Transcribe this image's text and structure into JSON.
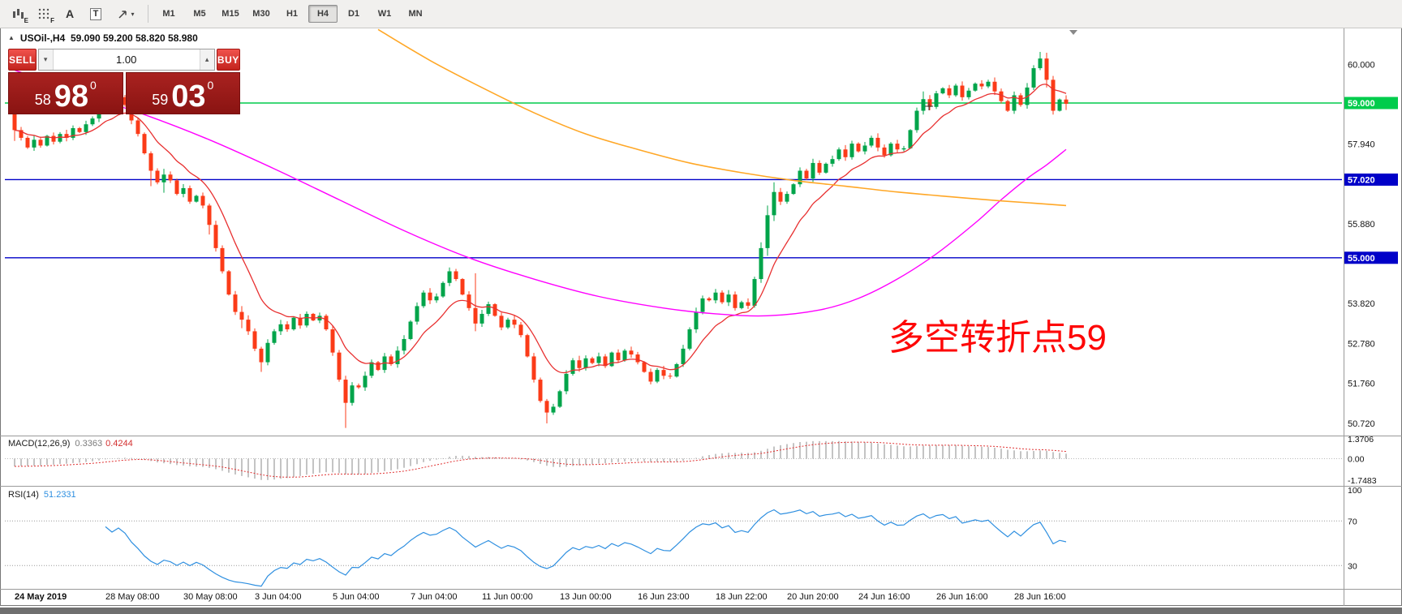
{
  "toolbar": {
    "tools": [
      {
        "id": "indicator",
        "label": "E"
      },
      {
        "id": "grid",
        "label": "F"
      },
      {
        "id": "text",
        "label": "A"
      },
      {
        "id": "template",
        "label": "T"
      },
      {
        "id": "cursor",
        "label": ""
      }
    ],
    "timeframes": [
      "M1",
      "M5",
      "M15",
      "M30",
      "H1",
      "H4",
      "D1",
      "W1",
      "MN"
    ],
    "selected_timeframe": "H4"
  },
  "chart": {
    "symbol": "USOil-,H4",
    "ohlc": "59.090 59.200 58.820 58.980",
    "annotation": "多空转折点59",
    "trade_panel": {
      "sell_label": "SELL",
      "buy_label": "BUY",
      "volume": "1.00",
      "sell_price": {
        "main": "58",
        "pips": "98",
        "pt": "0"
      },
      "buy_price": {
        "main": "59",
        "pips": "03",
        "pt": "0"
      }
    }
  },
  "macd_panel": {
    "title": "MACD(12,26,9)",
    "value_main": "0.3363",
    "value_signal": "0.4244",
    "axis": [
      "1.3706",
      "0.00",
      "-1.7483"
    ]
  },
  "rsi_panel": {
    "title": "RSI(14)",
    "value": "51.2331",
    "axis": [
      "100",
      "70",
      "30"
    ]
  },
  "chart_data": {
    "type": "candlestick",
    "title": "USOil- H4 with MACD(12,26,9) and RSI(14)",
    "price_axis_labels": [
      {
        "price": 60.0,
        "text": "60.000",
        "badge": null
      },
      {
        "price": 59.0,
        "text": "59.000",
        "badge": "#00CC4C"
      },
      {
        "price": 57.94,
        "text": "57.940",
        "badge": null
      },
      {
        "price": 57.02,
        "text": "57.020",
        "badge": "#0000C8"
      },
      {
        "price": 55.88,
        "text": "55.880",
        "badge": null
      },
      {
        "price": 55.0,
        "text": "55.000",
        "badge": "#0000C8"
      },
      {
        "price": 53.82,
        "text": "53.820",
        "badge": null
      },
      {
        "price": 52.78,
        "text": "52.780",
        "badge": null
      },
      {
        "price": 51.76,
        "text": "51.760",
        "badge": null
      },
      {
        "price": 50.72,
        "text": "50.720",
        "badge": null
      }
    ],
    "hlines": [
      {
        "price": 59.0,
        "color": "#00CC4C"
      },
      {
        "price": 57.02,
        "color": "#0000C8"
      },
      {
        "price": 55.0,
        "color": "#0000C8"
      }
    ],
    "candles": {
      "first_open": 58.95,
      "closes": [
        58.3,
        58.1,
        57.85,
        58.05,
        57.9,
        58.15,
        58.0,
        58.2,
        58.1,
        58.35,
        58.25,
        58.45,
        58.6,
        58.85,
        59.1,
        58.9,
        59.15,
        58.95,
        58.55,
        58.2,
        57.7,
        57.25,
        56.95,
        57.15,
        57.0,
        56.65,
        56.8,
        56.45,
        56.6,
        56.35,
        55.85,
        55.25,
        54.65,
        54.05,
        53.6,
        53.4,
        53.1,
        52.65,
        52.3,
        52.8,
        53.1,
        53.28,
        53.15,
        53.45,
        53.25,
        53.55,
        53.38,
        53.5,
        53.15,
        52.55,
        51.85,
        51.25,
        51.7,
        51.65,
        51.95,
        52.3,
        52.1,
        52.45,
        52.25,
        52.6,
        52.9,
        53.35,
        53.75,
        54.1,
        53.9,
        54.0,
        54.35,
        54.65,
        54.45,
        54.05,
        53.7,
        53.3,
        53.55,
        53.8,
        53.5,
        53.2,
        53.4,
        53.27,
        53.0,
        52.45,
        51.85,
        51.3,
        51.0,
        51.15,
        51.55,
        52.0,
        52.35,
        52.15,
        52.4,
        52.28,
        52.45,
        52.2,
        52.55,
        52.35,
        52.6,
        52.5,
        52.3,
        52.05,
        51.8,
        52.1,
        51.95,
        51.93,
        52.25,
        52.65,
        53.15,
        53.6,
        53.95,
        53.9,
        54.1,
        53.85,
        54.05,
        53.7,
        53.85,
        53.76,
        54.45,
        55.25,
        56.1,
        56.7,
        56.45,
        56.65,
        56.9,
        57.25,
        57.05,
        57.45,
        57.2,
        57.43,
        57.55,
        57.8,
        57.6,
        57.95,
        57.75,
        57.9,
        58.1,
        57.85,
        57.65,
        57.95,
        57.8,
        57.83,
        58.3,
        58.8,
        59.1,
        58.9,
        59.25,
        59.38,
        59.2,
        59.45,
        59.15,
        59.32,
        59.5,
        59.43,
        59.55,
        59.3,
        59.05,
        58.8,
        59.2,
        58.95,
        59.4,
        59.9,
        60.15,
        59.6,
        58.8,
        59.09,
        58.98
      ],
      "wick_overrides": {
        "0": [
          59.0,
          58.02
        ],
        "14": [
          59.33,
          58.82
        ],
        "21": [
          57.75,
          56.85
        ],
        "23": [
          57.3,
          56.68
        ],
        "30": [
          56.4,
          55.6
        ],
        "35": [
          53.75,
          53.18
        ],
        "38": [
          52.7,
          52.05
        ],
        "51": [
          51.95,
          50.6
        ],
        "60": [
          53.0,
          52.5
        ],
        "71": [
          54.6,
          53.1
        ],
        "82": [
          51.35,
          50.72
        ],
        "103": [
          52.75,
          52.18
        ],
        "115": [
          55.4,
          54.35
        ],
        "116": [
          56.35,
          55.05
        ],
        "117": [
          56.95,
          55.95
        ],
        "140": [
          59.3,
          58.7
        ],
        "158": [
          60.32,
          59.85
        ],
        "159": [
          60.3,
          59.4
        ],
        "160": [
          59.7,
          58.7
        ],
        "162": [
          59.2,
          58.82
        ]
      }
    },
    "time_labels": [
      {
        "text": "24 May 2019",
        "i": 0
      },
      {
        "text": "28 May 08:00",
        "i": 14
      },
      {
        "text": "30 May 08:00",
        "i": 26
      },
      {
        "text": "3 Jun 04:00",
        "i": 37
      },
      {
        "text": "5 Jun 04:00",
        "i": 49
      },
      {
        "text": "7 Jun 04:00",
        "i": 61
      },
      {
        "text": "11 Jun 00:00",
        "i": 72
      },
      {
        "text": "13 Jun 00:00",
        "i": 84
      },
      {
        "text": "16 Jun 23:00",
        "i": 96
      },
      {
        "text": "18 Jun 22:00",
        "i": 108
      },
      {
        "text": "20 Jun 20:00",
        "i": 119
      },
      {
        "text": "24 Jun 16:00",
        "i": 130
      },
      {
        "text": "26 Jun 16:00",
        "i": 142
      },
      {
        "text": "28 Jun 16:00",
        "i": 154
      }
    ],
    "indicators": {
      "ema_fast_period": 10,
      "ma_mid_waypoints": [
        [
          0,
          59.85
        ],
        [
          10,
          59.25
        ],
        [
          20,
          58.7
        ],
        [
          30,
          58.05
        ],
        [
          40,
          57.3
        ],
        [
          50,
          56.5
        ],
        [
          60,
          55.7
        ],
        [
          70,
          55.0
        ],
        [
          80,
          54.45
        ],
        [
          90,
          54.0
        ],
        [
          100,
          53.7
        ],
        [
          108,
          53.55
        ],
        [
          116,
          53.5
        ],
        [
          124,
          53.65
        ],
        [
          130,
          53.95
        ],
        [
          136,
          54.45
        ],
        [
          142,
          55.1
        ],
        [
          148,
          55.9
        ],
        [
          152,
          56.5
        ],
        [
          156,
          57.05
        ],
        [
          159,
          57.4
        ],
        [
          162,
          57.8
        ]
      ],
      "ma_slow_waypoints": [
        [
          56,
          60.9
        ],
        [
          64,
          60.1
        ],
        [
          72,
          59.4
        ],
        [
          80,
          58.75
        ],
        [
          88,
          58.2
        ],
        [
          96,
          57.8
        ],
        [
          104,
          57.45
        ],
        [
          112,
          57.2
        ],
        [
          120,
          57.0
        ],
        [
          128,
          56.85
        ],
        [
          136,
          56.7
        ],
        [
          144,
          56.58
        ],
        [
          152,
          56.47
        ],
        [
          158,
          56.4
        ],
        [
          162,
          56.35
        ]
      ],
      "macd": {
        "fast": 12,
        "slow": 26,
        "signal": 9,
        "y_max": 1.3706,
        "y_min": -1.7483
      },
      "rsi": {
        "period": 14,
        "levels": [
          30,
          70
        ]
      }
    },
    "colors": {
      "up": "#00A44A",
      "down": "#FB3B18",
      "ma_fast": "#E83030",
      "ma_mid": "#FF00FF",
      "ma_slow": "#FFA726",
      "macd_bar": "#8a8a8a",
      "macd_signal": "#E03030",
      "rsi_line": "#2E8FE0",
      "annotation": "#FE0606"
    }
  }
}
